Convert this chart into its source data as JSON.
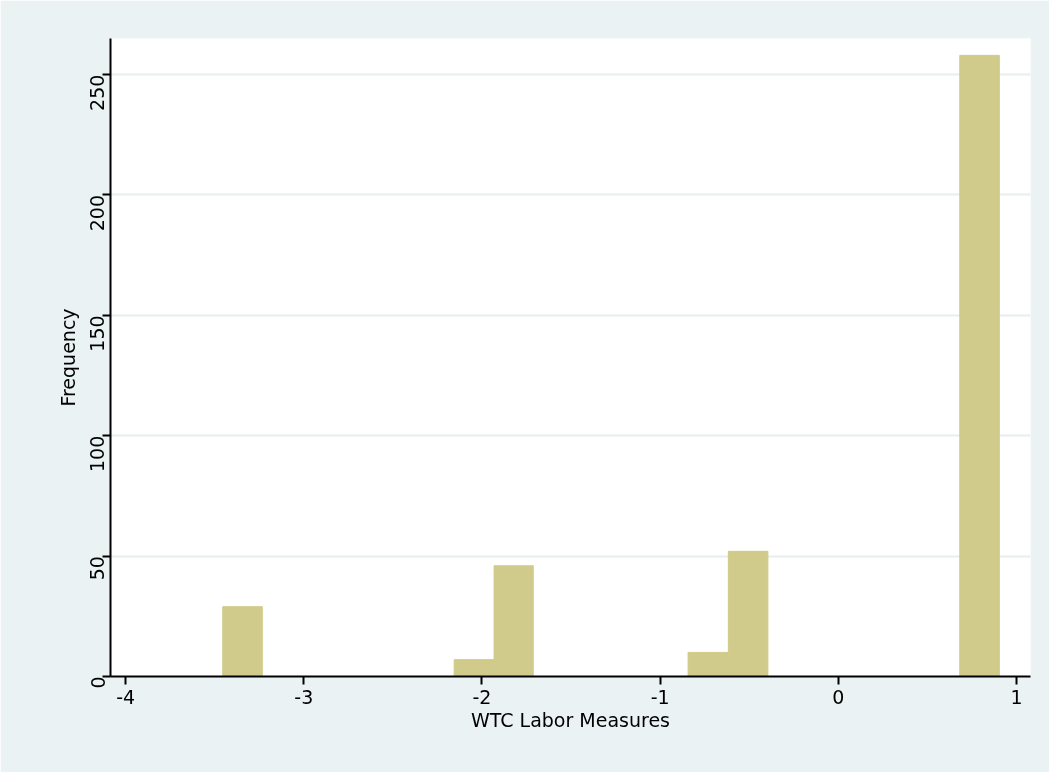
{
  "chart_data": {
    "type": "histogram",
    "xlabel": "WTC Labor Measures",
    "ylabel": "Frequency",
    "bins": [
      -3.455,
      -3.233,
      -2.156,
      -1.932,
      -1.712,
      -0.843,
      -0.617,
      -0.395,
      0.682,
      0.904
    ],
    "values": [
      29,
      0,
      7,
      46,
      0,
      10,
      52,
      0,
      258
    ],
    "color": "#d0cb8a",
    "xlim": [
      -4.085,
      1.079
    ],
    "xticks": [
      -4,
      -3,
      -2,
      -1,
      0,
      1
    ],
    "ylim": [
      0,
      265
    ],
    "yticks": [
      0,
      50,
      100,
      150,
      200,
      250
    ],
    "grid": "y"
  }
}
